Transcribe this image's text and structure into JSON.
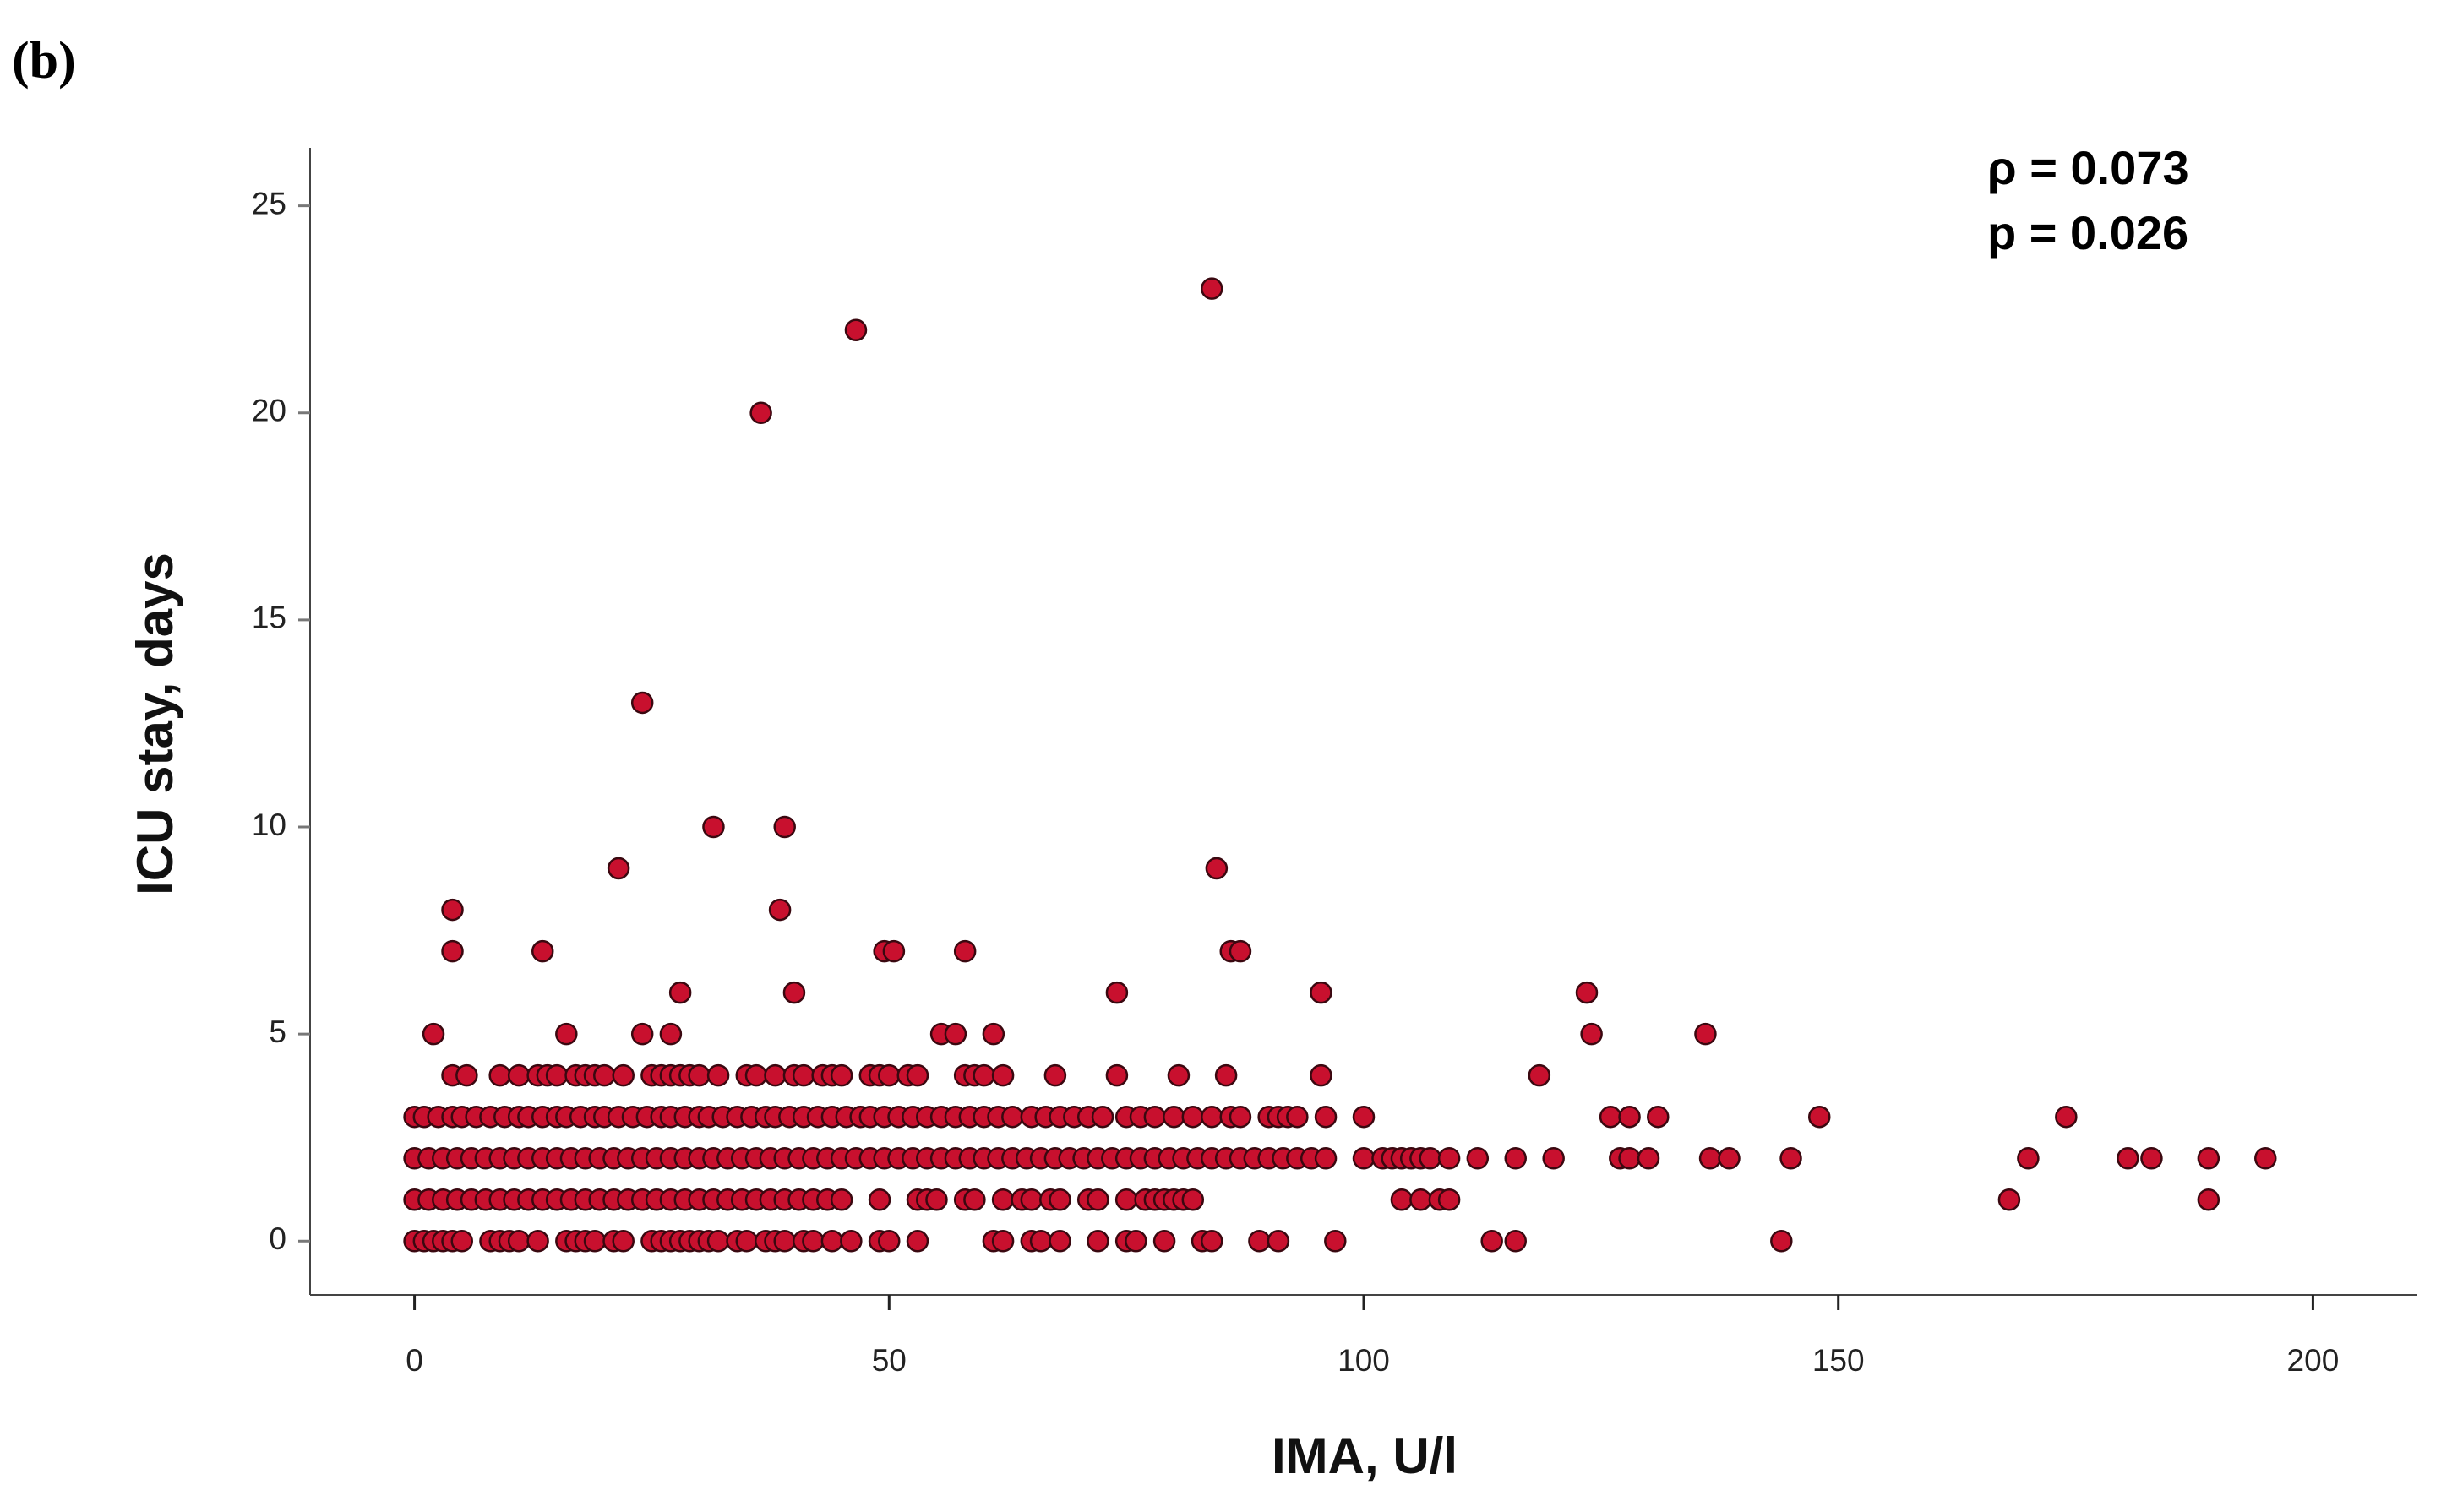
{
  "chart_data": {
    "type": "scatter",
    "panel_label": "(b)",
    "x_label": "IMA, U/l",
    "y_label": "ICU stay, days",
    "annotations": [
      "ρ  = 0.073",
      "p = 0.026"
    ],
    "xlim": [
      -11,
      211
    ],
    "xticks": [
      0,
      50,
      100,
      150,
      200
    ],
    "ylim": [
      -1.3,
      26.4
    ],
    "yticks": [
      0,
      5,
      10,
      15,
      20,
      25
    ],
    "grid": false,
    "series": [
      {
        "color": "#c8102e",
        "x": [
          36.5,
          46.5,
          84,
          24,
          21.5,
          31.5,
          39,
          38.5,
          40,
          4,
          4,
          13.5,
          2,
          16,
          24,
          27,
          28,
          49.5,
          50.5,
          58,
          55.5,
          57,
          61,
          74,
          84.5,
          86,
          87,
          95.5,
          123.5,
          124,
          136,
          95.5,
          118.5,
          80.5,
          85.5,
          74,
          67.5,
          4,
          5.5,
          9,
          11,
          13,
          14,
          15,
          17,
          18,
          19,
          20,
          22,
          25,
          26,
          27,
          28,
          29,
          30,
          32,
          35,
          36,
          38,
          40,
          41,
          43,
          44,
          45,
          48,
          49,
          50,
          52,
          53,
          58,
          59,
          60,
          62,
          0,
          1,
          2.5,
          4,
          5,
          6.5,
          8,
          9.5,
          11,
          12,
          13.5,
          15,
          16,
          17.5,
          19,
          20,
          21.5,
          23,
          24.5,
          26,
          27,
          28.5,
          30,
          31,
          32.5,
          34,
          35.5,
          37,
          38,
          39.5,
          41,
          42.5,
          44,
          45.5,
          47,
          48,
          49.5,
          51,
          52.5,
          54,
          55.5,
          57,
          58.5,
          60,
          61.5,
          63,
          65,
          66.5,
          68,
          69.5,
          71,
          72.5,
          75,
          76.5,
          78,
          80,
          82,
          84,
          86,
          87,
          90,
          91,
          92,
          93,
          96,
          100,
          126,
          128,
          131,
          148,
          174,
          0,
          1.5,
          3,
          4.5,
          6,
          7.5,
          9,
          10.5,
          12,
          13.5,
          15,
          16.5,
          18,
          19.5,
          21,
          22.5,
          24,
          25.5,
          27,
          28.5,
          30,
          31.5,
          33,
          34.5,
          36,
          37.5,
          39,
          40.5,
          42,
          43.5,
          45,
          46.5,
          48,
          49.5,
          51,
          52.5,
          54,
          55.5,
          57,
          58.5,
          60,
          61.5,
          63,
          64.5,
          66,
          67.5,
          69,
          70.5,
          72,
          73.5,
          75,
          76.5,
          78,
          79.5,
          81,
          82.5,
          84,
          85.5,
          87,
          88.5,
          90,
          91.5,
          93,
          94.5,
          96,
          100,
          102,
          103,
          104,
          105,
          106,
          107,
          109,
          112,
          116,
          120,
          127,
          128,
          130,
          136.5,
          138.5,
          145,
          170,
          180.5,
          183,
          189,
          195,
          0,
          1.5,
          3,
          4.5,
          6,
          7.5,
          9,
          10.5,
          12,
          13.5,
          15,
          16.5,
          18,
          19.5,
          21,
          22.5,
          24,
          25.5,
          27,
          28.5,
          30,
          31.5,
          33,
          34.5,
          36,
          37.5,
          39,
          40.5,
          42,
          43.5,
          45,
          49,
          53,
          54,
          55,
          58,
          59,
          62,
          64,
          65,
          67,
          68,
          71,
          72,
          75,
          77,
          78,
          79,
          80,
          81,
          82,
          104,
          106,
          108,
          109,
          168,
          189,
          0,
          1,
          2,
          3,
          4,
          5,
          8,
          9,
          10,
          11,
          13,
          16,
          17,
          18,
          19,
          21,
          22,
          25,
          26,
          27,
          28,
          29,
          30,
          31,
          32,
          34,
          35,
          37,
          38,
          39,
          41,
          42,
          44,
          46,
          49,
          50,
          53,
          61,
          62,
          65,
          66,
          68,
          72,
          75,
          76,
          79,
          83,
          84,
          89,
          91,
          97,
          113.5,
          116,
          144
        ],
        "values": [
          20,
          22,
          23,
          13,
          9,
          10,
          10,
          8,
          6,
          8,
          7,
          7,
          5,
          5,
          5,
          5,
          6,
          7,
          7,
          7,
          5,
          5,
          5,
          6,
          9,
          7,
          7,
          6,
          6,
          5,
          5,
          4,
          4,
          4,
          4,
          4,
          4,
          4,
          4,
          4,
          4,
          4,
          4,
          4,
          4,
          4,
          4,
          4,
          4,
          4,
          4,
          4,
          4,
          4,
          4,
          4,
          4,
          4,
          4,
          4,
          4,
          4,
          4,
          4,
          4,
          4,
          4,
          4,
          4,
          4,
          4,
          4,
          4,
          3,
          3,
          3,
          3,
          3,
          3,
          3,
          3,
          3,
          3,
          3,
          3,
          3,
          3,
          3,
          3,
          3,
          3,
          3,
          3,
          3,
          3,
          3,
          3,
          3,
          3,
          3,
          3,
          3,
          3,
          3,
          3,
          3,
          3,
          3,
          3,
          3,
          3,
          3,
          3,
          3,
          3,
          3,
          3,
          3,
          3,
          3,
          3,
          3,
          3,
          3,
          3,
          3,
          3,
          3,
          3,
          3,
          3,
          3,
          3,
          3,
          3,
          3,
          3,
          3,
          3,
          3,
          3,
          3,
          3,
          3,
          2,
          2,
          2,
          2,
          2,
          2,
          2,
          2,
          2,
          2,
          2,
          2,
          2,
          2,
          2,
          2,
          2,
          2,
          2,
          2,
          2,
          2,
          2,
          2,
          2,
          2,
          2,
          2,
          2,
          2,
          2,
          2,
          2,
          2,
          2,
          2,
          2,
          2,
          2,
          2,
          2,
          2,
          2,
          2,
          2,
          2,
          2,
          2,
          2,
          2,
          2,
          2,
          2,
          2,
          2,
          2,
          2,
          2,
          2,
          2,
          2,
          2,
          2,
          2,
          2,
          2,
          2,
          2,
          2,
          2,
          2,
          2,
          2,
          2,
          2,
          2,
          2,
          2,
          2,
          2,
          2,
          2,
          2,
          2,
          2,
          2,
          2,
          1,
          1,
          1,
          1,
          1,
          1,
          1,
          1,
          1,
          1,
          1,
          1,
          1,
          1,
          1,
          1,
          1,
          1,
          1,
          1,
          1,
          1,
          1,
          1,
          1,
          1,
          1,
          1,
          1,
          1,
          1,
          1,
          1,
          1,
          1,
          1,
          1,
          1,
          1,
          1,
          1,
          1,
          1,
          1,
          1,
          1,
          1,
          1,
          1,
          1,
          1,
          1,
          1,
          1,
          1,
          1,
          1,
          0,
          0,
          0,
          0,
          0,
          0,
          0,
          0,
          0,
          0,
          0,
          0,
          0,
          0,
          0,
          0,
          0,
          0,
          0,
          0,
          0,
          0,
          0,
          0,
          0,
          0,
          0,
          0,
          0,
          0,
          0,
          0,
          0,
          0,
          0,
          0,
          0,
          0,
          0,
          0,
          0,
          0,
          0,
          0,
          0,
          0,
          0,
          0,
          0,
          0,
          0,
          0,
          0,
          0
        ]
      }
    ]
  }
}
